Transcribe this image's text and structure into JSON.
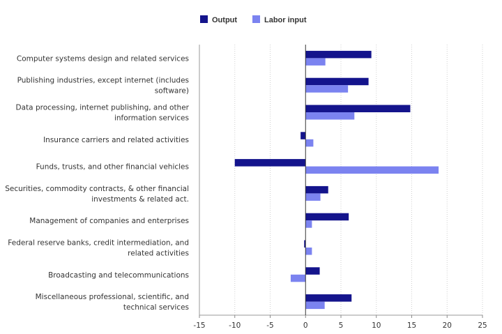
{
  "chart_data": {
    "type": "bar",
    "orientation": "horizontal",
    "categories": [
      [
        "Computer systems design and related services"
      ],
      [
        "Publishing industries, except internet (includes",
        "software)"
      ],
      [
        "Data processing, internet publishing, and other",
        "information services"
      ],
      [
        "Insurance carriers and related activities"
      ],
      [
        "Funds, trusts, and other financial vehicles"
      ],
      [
        "Securities, commodity contracts, & other financial",
        "investments & related act."
      ],
      [
        "Management of companies and enterprises"
      ],
      [
        "Federal reserve banks, credit intermediation, and",
        "related activities"
      ],
      [
        "Broadcasting and telecommunications"
      ],
      [
        "Miscellaneous professional, scientific, and",
        "technical services"
      ]
    ],
    "series": [
      {
        "name": "Output",
        "color": "#14148c",
        "values": [
          9.3,
          8.9,
          14.8,
          -0.7,
          -10.0,
          3.2,
          6.1,
          -0.2,
          2.0,
          6.5
        ]
      },
      {
        "name": "Labor input",
        "color": "#7b83f0",
        "values": [
          2.8,
          6.0,
          6.9,
          1.1,
          18.8,
          2.1,
          0.9,
          0.9,
          -2.1,
          2.7
        ]
      }
    ],
    "xticks": [
      "-15",
      "-10",
      "-5",
      "0",
      "5",
      "10",
      "15",
      "20",
      "25"
    ],
    "xlim": [
      -15,
      25
    ],
    "grid": "vertical dotted",
    "legend_position": "top-center"
  }
}
